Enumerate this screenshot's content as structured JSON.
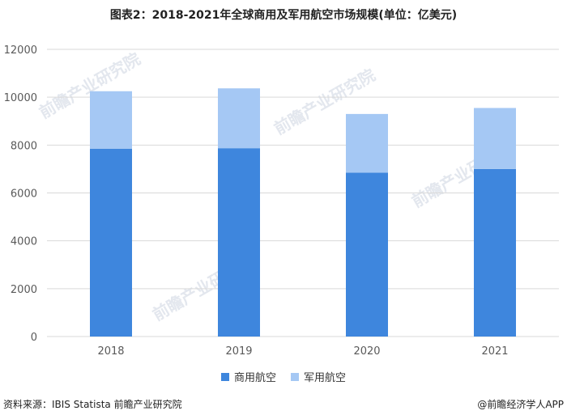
{
  "title": "图表2：2018-2021年全球商用及军用航空市场规模(单位：亿美元)",
  "watermark_text": "前瞻产业研究院",
  "source": "资料来源：IBIS Statista 前瞻产业研究院",
  "credit": "@前瞻经济学人APP",
  "colors": {
    "commercial": "#3e86dd",
    "military": "#a5c8f4",
    "grid": "#d9d9d9",
    "axis_text": "#595959"
  },
  "chart_data": {
    "type": "bar",
    "stacked": true,
    "categories": [
      "2018",
      "2019",
      "2020",
      "2021"
    ],
    "series": [
      {
        "name": "商用航空",
        "values": [
          7850,
          7870,
          6850,
          7000
        ]
      },
      {
        "name": "军用航空",
        "values": [
          2400,
          2500,
          2450,
          2550
        ]
      }
    ],
    "ylim": [
      0,
      12000
    ],
    "yticks": [
      0,
      2000,
      4000,
      6000,
      8000,
      10000,
      12000
    ],
    "grid": true,
    "legend_position": "bottom"
  }
}
